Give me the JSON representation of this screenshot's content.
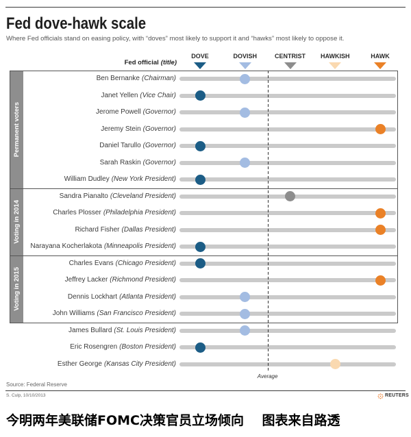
{
  "chart_data": {
    "type": "scatter",
    "title": "Fed dove-hawk scale",
    "subtitle": "Where Fed officials stand on easing policy, with “doves” most likely to support it and “hawks” most likely to oppose it.",
    "row_header": {
      "label": "Fed official",
      "sublabel": "(title)"
    },
    "categories": [
      "DOVE",
      "DOVISH",
      "CENTRIST",
      "HAWKISH",
      "HAWK"
    ],
    "category_colors": [
      "#1c5d86",
      "#a3bce2",
      "#8d8d8d",
      "#fad9b0",
      "#ea8127"
    ],
    "xlim": [
      0,
      4
    ],
    "average": 1.5,
    "average_label": "Average",
    "groups": [
      {
        "label": "Permanent voters",
        "officials": [
          {
            "name": "Ben Bernanke",
            "title": "(Chairman)",
            "value": 1
          },
          {
            "name": "Janet Yellen",
            "title": "(Vice Chair)",
            "value": 0
          },
          {
            "name": "Jerome Powell",
            "title": "(Governor)",
            "value": 1
          },
          {
            "name": "Jeremy Stein",
            "title": "(Governor)",
            "value": 4
          },
          {
            "name": "Daniel Tarullo",
            "title": "(Governor)",
            "value": 0
          },
          {
            "name": "Sarah Raskin",
            "title": "(Governor)",
            "value": 1
          },
          {
            "name": "William Dudley",
            "title": "(New York President)",
            "value": 0
          }
        ]
      },
      {
        "label": "Voting in 2014",
        "officials": [
          {
            "name": "Sandra Pianalto",
            "title": "(Cleveland President)",
            "value": 2
          },
          {
            "name": "Charles Plosser",
            "title": "(Philadelphia President)",
            "value": 4
          },
          {
            "name": "Richard Fisher",
            "title": "(Dallas President)",
            "value": 4
          },
          {
            "name": "Narayana Kocherlakota",
            "title": "(Minneapolis President)",
            "value": 0
          }
        ]
      },
      {
        "label": "Voting in 2015",
        "officials": [
          {
            "name": "Charles Evans",
            "title": "(Chicago President)",
            "value": 0
          },
          {
            "name": "Jeffrey Lacker",
            "title": "(Richmond President)",
            "value": 4
          },
          {
            "name": "Dennis Lockhart",
            "title": "(Atlanta President)",
            "value": 1
          },
          {
            "name": "John Williams",
            "title": "(San Francisco President)",
            "value": 1
          }
        ]
      },
      {
        "label": null,
        "officials": [
          {
            "name": "James Bullard",
            "title": "(St. Louis President)",
            "value": 1
          },
          {
            "name": "Eric Rosengren",
            "title": "(Boston President)",
            "value": 0
          },
          {
            "name": "Esther George",
            "title": "(Kansas City President)",
            "value": 3
          }
        ]
      }
    ]
  },
  "footer": {
    "source": "Source: Federal Reserve",
    "credit": "S. Culp, 10/10/2013",
    "logo_text": "REUTERS"
  },
  "caption": "今明两年美联储FOMC决策官员立场倾向    图表来自路透",
  "colors": {
    "bar": "#cacaca",
    "strip": "#8e8e8e",
    "rule": "#3a3a3a",
    "frame": "#555555",
    "logo": "#ee7d2b"
  }
}
